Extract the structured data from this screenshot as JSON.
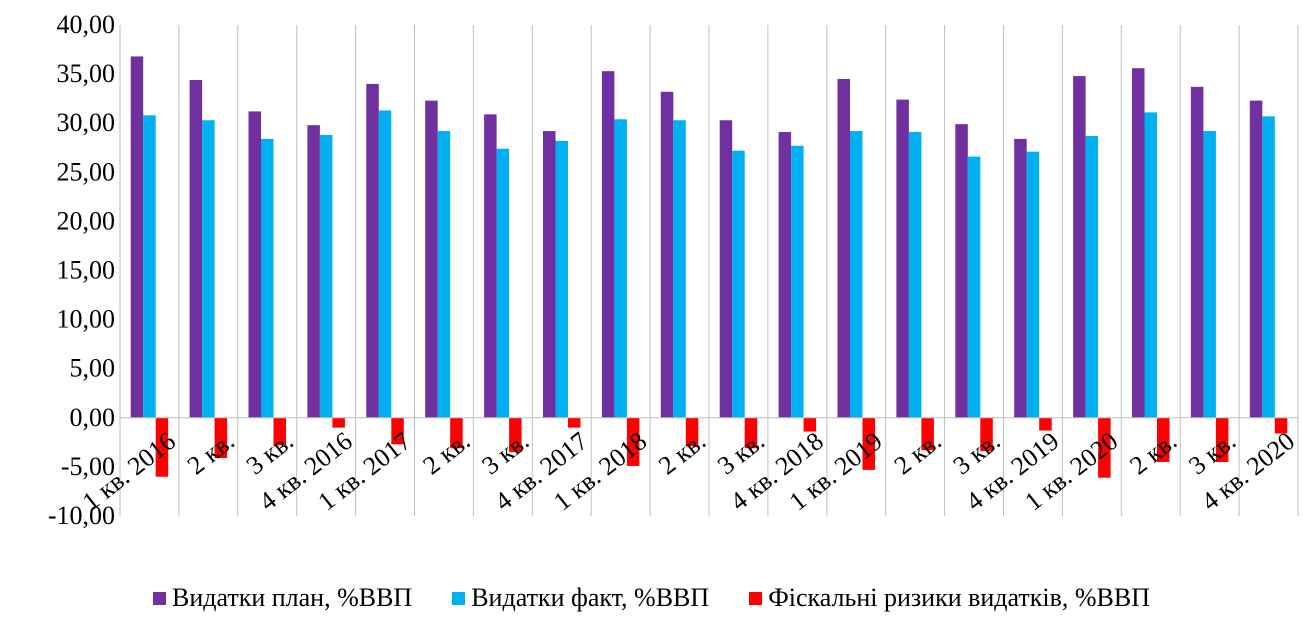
{
  "chart_data": {
    "type": "bar",
    "title": "",
    "xlabel": "",
    "ylabel": "",
    "ylim": [
      -10,
      40
    ],
    "yticks": [
      "-10,00",
      "-5,00",
      "0,00",
      "5,00",
      "10,00",
      "15,00",
      "20,00",
      "25,00",
      "30,00",
      "35,00",
      "40,00"
    ],
    "categories": [
      "1 кв. 2016",
      "2 кв.",
      "3 кв.",
      "4 кв. 2016",
      "1 кв. 2017",
      "2 кв.",
      "3 кв.",
      "4 кв. 2017",
      "1 кв. 2018",
      "2 кв.",
      "3 кв.",
      "4 кв. 2018",
      "1 кв. 2019",
      "2 кв.",
      "3 кв.",
      "4 кв. 2019",
      "1 кв. 2020",
      "2 кв.",
      "3 кв.",
      "4 кв. 2020"
    ],
    "series": [
      {
        "name": "Видатки план, %ВВП",
        "color": "#7030A0",
        "values": [
          36.8,
          34.4,
          31.2,
          29.8,
          34.0,
          32.3,
          30.9,
          29.2,
          35.3,
          33.2,
          30.3,
          29.1,
          34.5,
          32.4,
          29.9,
          28.4,
          34.8,
          35.6,
          33.7,
          32.3
        ]
      },
      {
        "name": "Видатки факт, %ВВП",
        "color": "#00B0F0",
        "values": [
          30.8,
          30.3,
          28.4,
          28.8,
          31.3,
          29.2,
          27.4,
          28.2,
          30.4,
          30.3,
          27.2,
          27.7,
          29.2,
          29.1,
          26.6,
          27.1,
          28.7,
          31.1,
          29.2,
          30.7
        ]
      },
      {
        "name": "Фіскальні ризики видатків, %ВВП",
        "color": "#FF0000",
        "values": [
          -6.0,
          -4.1,
          -2.8,
          -1.0,
          -2.7,
          -3.1,
          -3.5,
          -1.0,
          -4.9,
          -2.9,
          -3.1,
          -1.4,
          -5.3,
          -3.3,
          -3.4,
          -1.3,
          -6.1,
          -4.5,
          -4.5,
          -1.6
        ]
      }
    ],
    "legend_position": "bottom",
    "grid": "vertical category separators"
  }
}
